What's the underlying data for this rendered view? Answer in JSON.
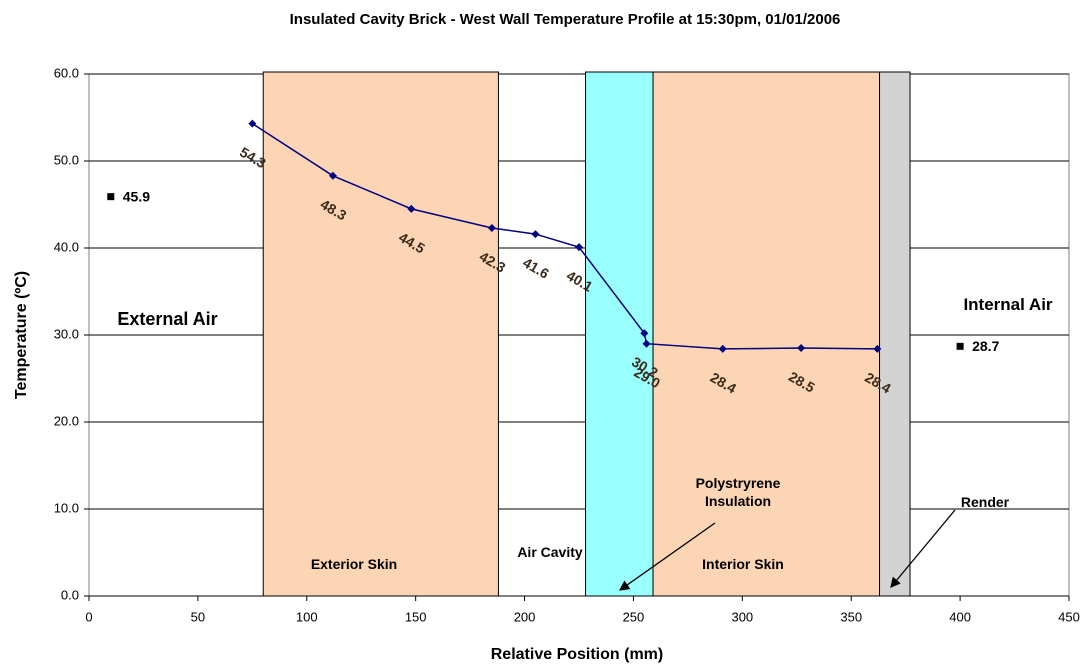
{
  "chart_data": {
    "type": "line",
    "title": "Insulated Cavity Brick - West Wall Temperature Profile at 15:30pm, 01/01/2006",
    "x_label": "Relative Position (mm)",
    "y_label": "Temperature (ºC)",
    "xlim": [
      0,
      450
    ],
    "xticks": [
      0,
      50,
      100,
      150,
      200,
      250,
      300,
      350,
      400,
      450
    ],
    "ylim": [
      0,
      60
    ],
    "yticks": [
      {
        "value": 0,
        "label": "0.0"
      },
      {
        "value": 10,
        "label": "10.0"
      },
      {
        "value": 20,
        "label": "20.0"
      },
      {
        "value": 30,
        "label": "30.0"
      },
      {
        "value": 40,
        "label": "40.0"
      },
      {
        "value": 50,
        "label": "50.0"
      },
      {
        "value": 60,
        "label": "60.0"
      }
    ],
    "grid": true,
    "bands": [
      {
        "x0": 80,
        "x1": 188,
        "color": "#fcd5b5"
      },
      {
        "x0": 228,
        "x1": 259,
        "color": "#99ffff"
      },
      {
        "x0": 259,
        "x1": 363,
        "color": "#fcd5b5"
      },
      {
        "x0": 363,
        "x1": 377,
        "color": "#d3d3d3"
      }
    ],
    "series": [
      {
        "color": "#000080",
        "x": [
          75,
          112,
          148,
          185,
          205,
          225,
          255,
          256,
          291,
          327,
          362
        ],
        "values": [
          54.3,
          48.3,
          44.5,
          42.3,
          41.6,
          40.1,
          30.2,
          29.0,
          28.4,
          28.5,
          28.4
        ],
        "value_labels": [
          "54.3",
          "48.3",
          "44.5",
          "42.3",
          "41.6",
          "40.1",
          "30.2",
          "29.0",
          "28.4",
          "28.5",
          "28.4"
        ]
      }
    ],
    "points": [
      {
        "x": 10,
        "value": 45.9,
        "label": "45.9"
      },
      {
        "x": 400,
        "value": 28.7,
        "label": "28.7"
      }
    ],
    "annotations": [
      "External Air",
      "Internal Air",
      "Exterior Skin",
      "Air Cavity",
      "Interior Skin",
      "Polystryrene Insulation",
      "Render"
    ]
  }
}
